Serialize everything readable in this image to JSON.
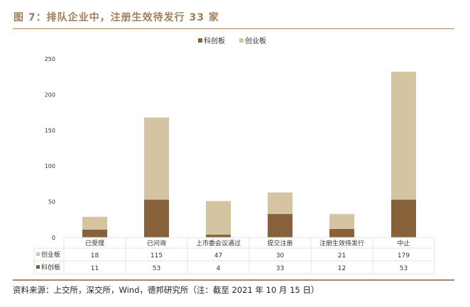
{
  "title": "图 7：排队企业中，注册生效待发行 33 家",
  "source": "资料来源：上交所，深交所，Wind，德邦研究所（注：截至 2021 年 10 月 15 日）",
  "colors": {
    "kechuang": "#86613a",
    "chuangye": "#d5c4a1",
    "title": "#a07e5a"
  },
  "chart_data": {
    "type": "bar",
    "stacked": true,
    "categories": [
      "已受理",
      "已问询",
      "上市委会议通过",
      "提交注册",
      "注册生效待发行",
      "中止"
    ],
    "series": [
      {
        "name": "科创板",
        "values": [
          11,
          53,
          4,
          33,
          12,
          53
        ]
      },
      {
        "name": "创业板",
        "values": [
          18,
          115,
          47,
          30,
          21,
          179
        ]
      }
    ],
    "ylim": [
      0,
      250
    ],
    "yticks": [
      0,
      50,
      100,
      150,
      200,
      250
    ],
    "legend": "top-center",
    "data_table": true
  }
}
